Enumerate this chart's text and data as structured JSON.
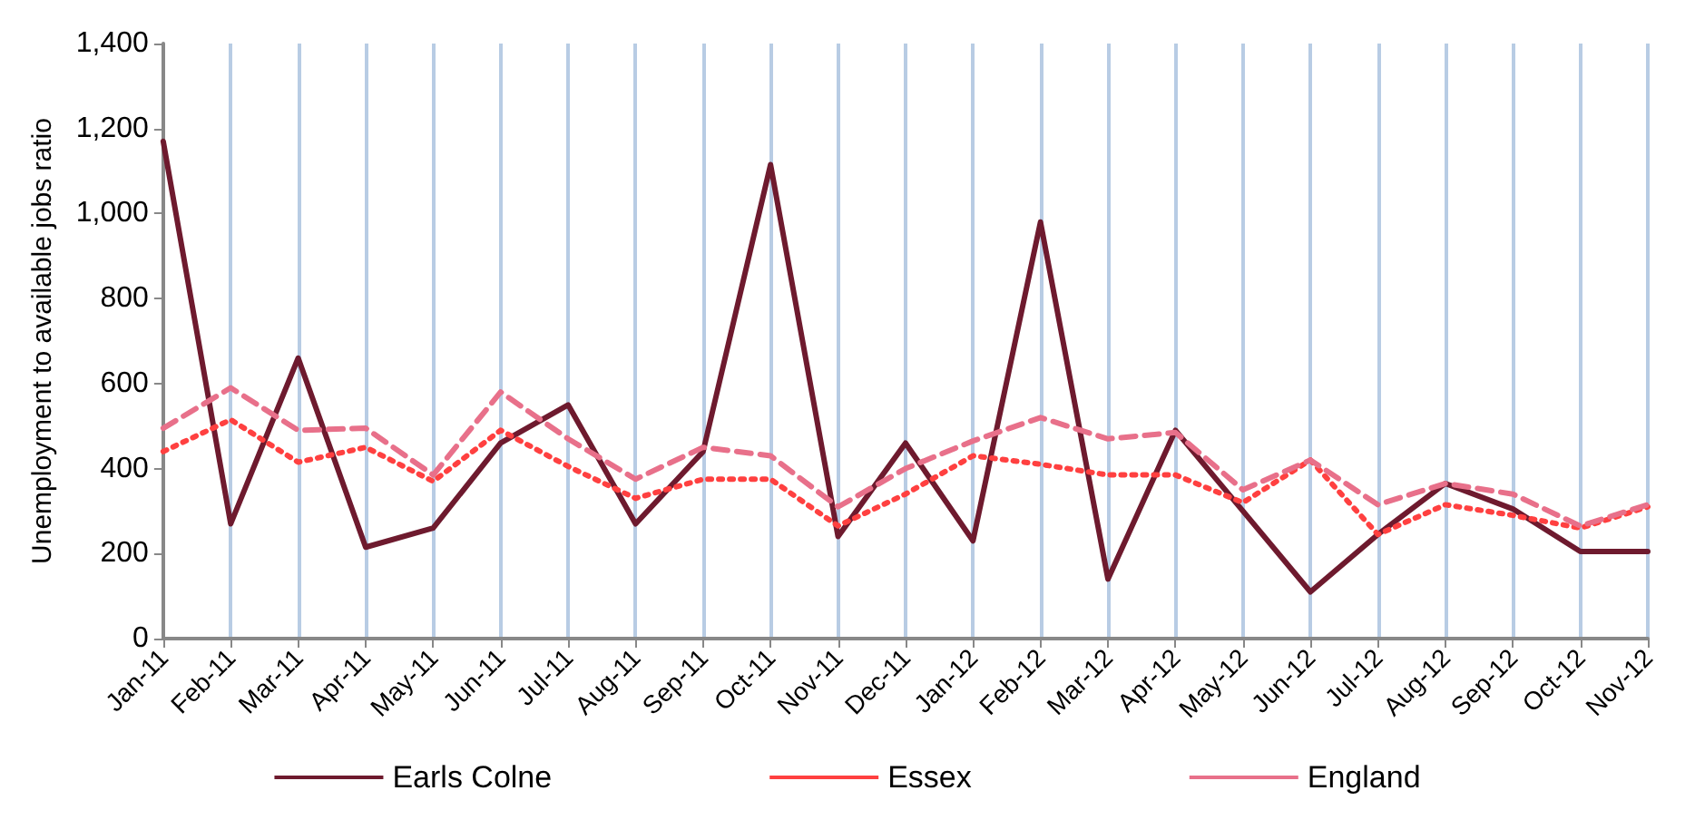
{
  "chart_data": {
    "type": "line",
    "ylabel": "Unemployment to available jobs ratio",
    "categories": [
      "Jan-11",
      "Feb-11",
      "Mar-11",
      "Apr-11",
      "May-11",
      "Jun-11",
      "Jul-11",
      "Aug-11",
      "Sep-11",
      "Oct-11",
      "Nov-11",
      "Dec-11",
      "Jan-12",
      "Feb-12",
      "Mar-12",
      "Apr-12",
      "May-12",
      "Jun-12",
      "Jul-12",
      "Aug-12",
      "Sep-12",
      "Oct-12",
      "Nov-12"
    ],
    "series": [
      {
        "name": "Earls Colne",
        "color": "#6e1a2e",
        "line_style": "solid",
        "values": [
          1170,
          270,
          660,
          215,
          260,
          460,
          550,
          270,
          440,
          1115,
          240,
          460,
          230,
          980,
          140,
          490,
          300,
          110,
          245,
          365,
          305,
          205,
          205
        ]
      },
      {
        "name": "Essex",
        "color": "#ff4040",
        "line_style": "dotted",
        "values": [
          440,
          515,
          415,
          450,
          370,
          490,
          405,
          330,
          375,
          375,
          265,
          340,
          430,
          410,
          385,
          385,
          320,
          420,
          245,
          315,
          290,
          260,
          310
        ]
      },
      {
        "name": "England",
        "color": "#e8708a",
        "line_style": "dashed",
        "values": [
          495,
          590,
          490,
          495,
          385,
          580,
          470,
          375,
          450,
          430,
          310,
          400,
          465,
          520,
          470,
          485,
          350,
          420,
          315,
          365,
          340,
          265,
          315
        ]
      }
    ],
    "ylim": [
      0,
      1400
    ],
    "yticks": [
      0,
      {
        "value": 200,
        "label": "200"
      },
      {
        "value": 400,
        "label": "400"
      },
      {
        "value": 600,
        "label": "600"
      },
      {
        "value": 800,
        "label": "800"
      },
      {
        "value": 1000,
        "label": "1,000"
      },
      {
        "value": 1200,
        "label": "1,200"
      },
      {
        "value": 1400,
        "label": "1,400"
      }
    ],
    "grid": "x",
    "legend": "bottom",
    "marker": "none"
  }
}
